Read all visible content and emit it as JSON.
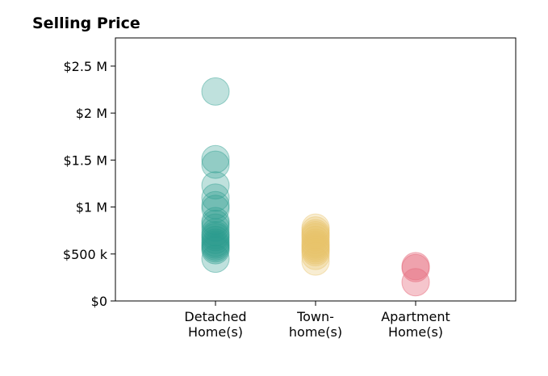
{
  "chart_data": {
    "type": "scatter",
    "title": "Selling Price",
    "xlabel": "",
    "ylabel": "",
    "categories": [
      {
        "id": "detached",
        "lines": [
          "Detached",
          "Home(s)"
        ]
      },
      {
        "id": "townhome",
        "lines": [
          "Town-",
          "home(s)"
        ]
      },
      {
        "id": "apartment",
        "lines": [
          "Apartment",
          "Home(s)"
        ]
      }
    ],
    "ylim": [
      0,
      2800000
    ],
    "xlim": [
      -1,
      3
    ],
    "y_ticks": [
      {
        "value": 0,
        "label": "$0"
      },
      {
        "value": 500000,
        "label": "$500 k"
      },
      {
        "value": 1000000,
        "label": "$1 M"
      },
      {
        "value": 1500000,
        "label": "$1.5 M"
      },
      {
        "value": 2000000,
        "label": "$2 M"
      },
      {
        "value": 2500000,
        "label": "$2.5 M"
      }
    ],
    "grid": false,
    "legend": "none",
    "series": [
      {
        "category": "detached",
        "color": "#2a9d8f",
        "opacity": 0.3,
        "values": [
          2230000,
          1510000,
          1450000,
          1230000,
          1100000,
          1020000,
          980000,
          850000,
          820000,
          780000,
          730000,
          700000,
          680000,
          650000,
          620000,
          600000,
          580000,
          560000,
          540000,
          450000
        ]
      },
      {
        "category": "townhome",
        "color": "#e9c46a",
        "opacity": 0.3,
        "values": [
          780000,
          750000,
          720000,
          700000,
          680000,
          650000,
          620000,
          600000,
          580000,
          560000,
          540000,
          520000,
          480000,
          420000
        ]
      },
      {
        "category": "apartment",
        "color": "#e76f7f",
        "opacity": 0.4,
        "values": [
          370000,
          350000,
          200000
        ]
      }
    ]
  }
}
